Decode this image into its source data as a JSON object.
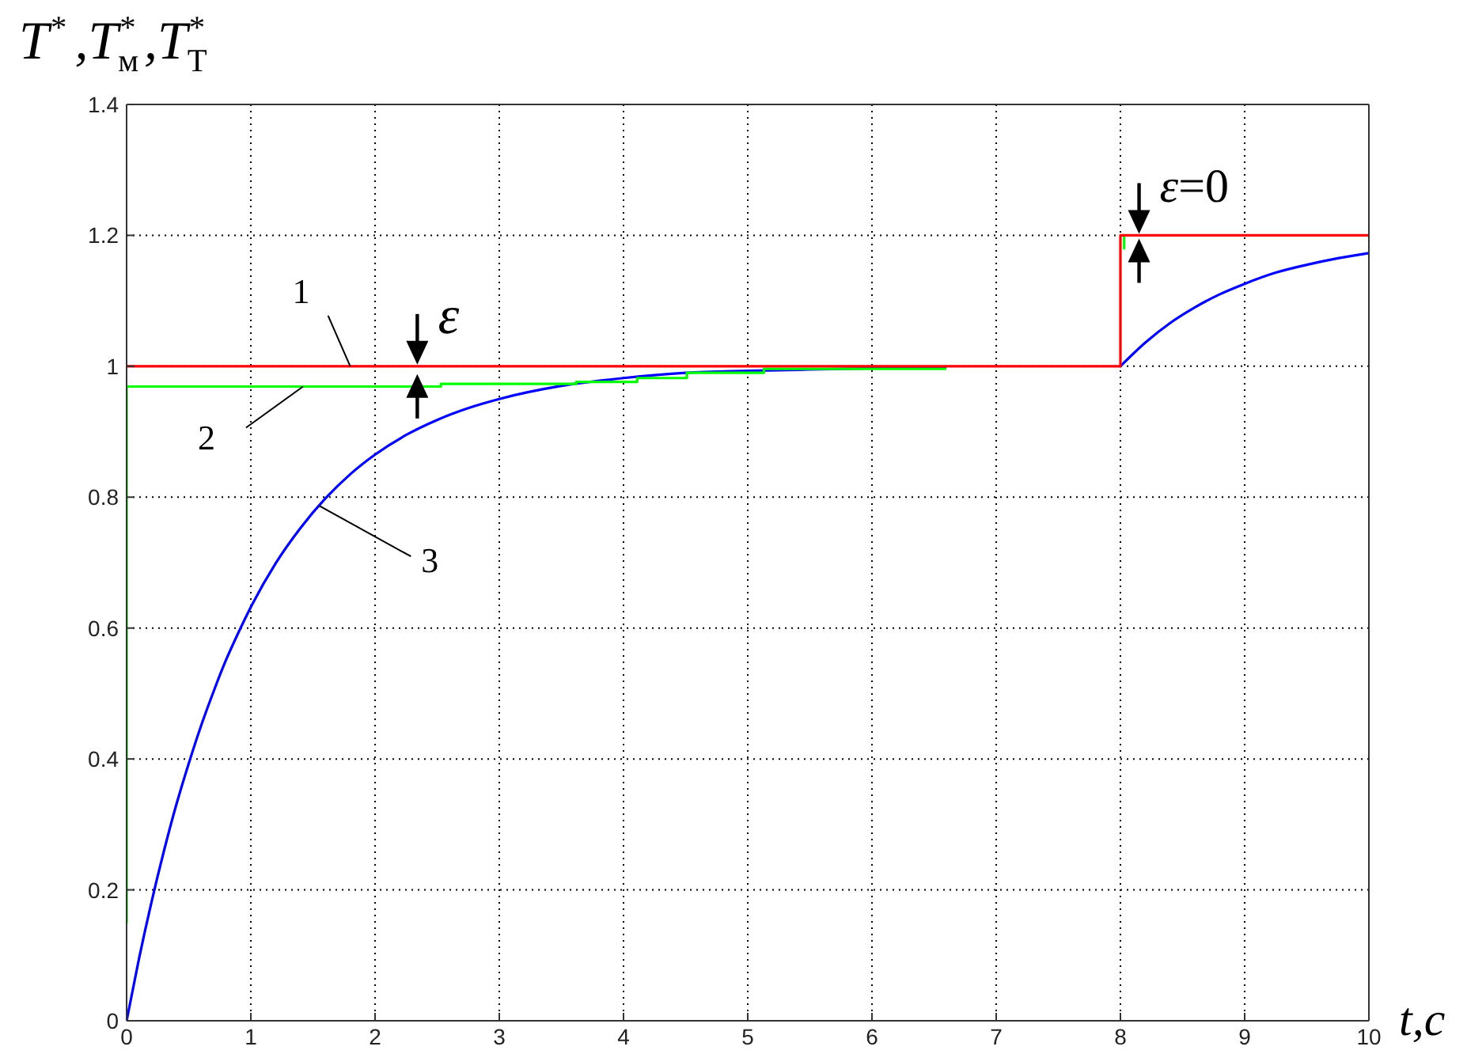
{
  "chart_data": {
    "type": "line",
    "xlabel": "t,c",
    "ylabel": "T$^{*}$,T$_{м}$$^{*}$,T$_{Т}$$^{*}$",
    "xlim": [
      0,
      10
    ],
    "xticks": [
      0,
      1,
      2,
      3,
      4,
      5,
      6,
      7,
      8,
      9,
      10
    ],
    "ylim": [
      0,
      1.4
    ],
    "yticks": [
      0,
      0.2,
      0.4,
      0.6,
      0.8,
      1,
      1.2,
      1.4
    ],
    "grid": true,
    "annotations": [
      {
        "text": "ε",
        "x": 2.34,
        "y": 1
      },
      {
        "text": "ε=0",
        "x": 8.15,
        "y": 1.2
      }
    ],
    "series": [
      {
        "name": "1",
        "color": "#ff0000",
        "x": [
          0,
          8,
          8,
          10
        ],
        "values": [
          1,
          1,
          1.2,
          1.2
        ]
      },
      {
        "name": "2",
        "color": "#00ff00",
        "x": [
          0,
          0,
          2.53,
          2.53,
          3.62,
          3.62,
          4.11,
          4.11,
          4.51,
          4.51,
          5.13,
          5.13,
          6.59,
          7.3,
          8.03,
          8.03
        ],
        "values": [
          0.15,
          0.969,
          0.969,
          0.973,
          0.973,
          0.976,
          0.976,
          0.982,
          0.982,
          0.99,
          0.99,
          0.996,
          0.996,
          null,
          1.18,
          1.2
        ]
      },
      {
        "name": "3",
        "color": "#0000ff",
        "x": [
          0,
          0.1,
          0.2,
          0.3,
          0.4,
          0.5,
          0.6,
          0.7,
          0.8,
          0.9,
          1,
          1.2,
          1.4,
          1.6,
          1.8,
          2,
          2.25,
          2.5,
          2.75,
          3,
          3.5,
          4,
          4.5,
          5,
          5.5,
          6,
          6.59,
          7.3,
          8,
          8.2,
          8.4,
          8.6,
          8.8,
          9,
          9.25,
          9.5,
          9.75,
          10
        ],
        "values": [
          0,
          0.095,
          0.181,
          0.259,
          0.33,
          0.393,
          0.451,
          0.503,
          0.551,
          0.593,
          0.632,
          0.699,
          0.753,
          0.798,
          0.835,
          0.865,
          0.895,
          0.918,
          0.936,
          0.95,
          0.97,
          0.982,
          0.99,
          0.993,
          0.995,
          0.997,
          0.998,
          null,
          1,
          1.036,
          1.066,
          1.09,
          1.11,
          1.126,
          1.143,
          1.155,
          1.165,
          1.173
        ]
      }
    ]
  }
}
